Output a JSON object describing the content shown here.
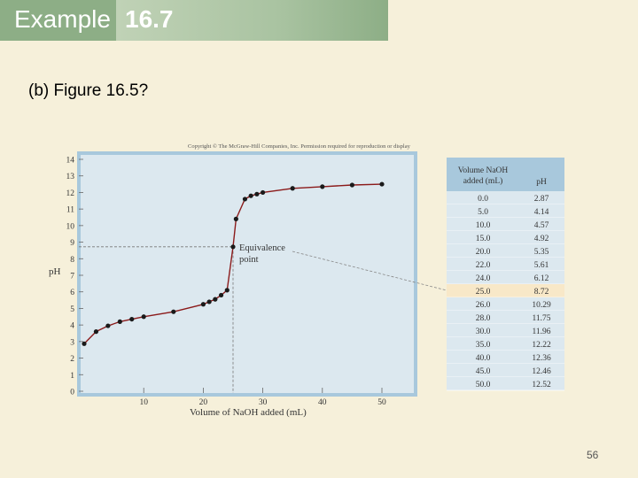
{
  "header": {
    "title_word": "Example",
    "title_number": "16.7"
  },
  "subtitle": "(b) Figure 16.5?",
  "page_number": "56",
  "copyright": "Copyright © The McGraw-Hill Companies, Inc. Permission required for reproduction or display",
  "annotation": {
    "line1": "Equivalence",
    "line2": "point"
  },
  "colors": {
    "title_bg": "#8dae86",
    "plot_bg": "#dce8ef",
    "plot_border": "#a8c8dc",
    "curve": "#8b1a1a",
    "table_header": "#a8c8dc",
    "table_highlight": "#f8e8c8"
  },
  "table": {
    "header_col1": [
      "Volume NaOH",
      "added (mL)"
    ],
    "header_col2": "pH",
    "rows": [
      [
        "0.0",
        "2.87"
      ],
      [
        "5.0",
        "4.14"
      ],
      [
        "10.0",
        "4.57"
      ],
      [
        "15.0",
        "4.92"
      ],
      [
        "20.0",
        "5.35"
      ],
      [
        "22.0",
        "5.61"
      ],
      [
        "24.0",
        "6.12"
      ],
      [
        "25.0",
        "8.72"
      ],
      [
        "26.0",
        "10.29"
      ],
      [
        "28.0",
        "11.75"
      ],
      [
        "30.0",
        "11.96"
      ],
      [
        "35.0",
        "12.22"
      ],
      [
        "40.0",
        "12.36"
      ],
      [
        "45.0",
        "12.46"
      ],
      [
        "50.0",
        "12.52"
      ]
    ],
    "highlight_row": 7
  },
  "chart_data": {
    "type": "line",
    "xlabel": "Volume of NaOH added (mL)",
    "ylabel": "pH",
    "xlim": [
      0,
      50
    ],
    "ylim": [
      0,
      14
    ],
    "x_ticks": [
      "10",
      "20",
      "30",
      "40",
      "50"
    ],
    "y_ticks": [
      "0",
      "1",
      "2",
      "3",
      "4",
      "5",
      "6",
      "7",
      "8",
      "9",
      "10",
      "11",
      "12",
      "13",
      "14"
    ],
    "equivalence_point": {
      "x": 25,
      "y": 8.72
    },
    "points": [
      {
        "x": 0,
        "y": 2.87
      },
      {
        "x": 2,
        "y": 3.6
      },
      {
        "x": 4,
        "y": 3.95
      },
      {
        "x": 6,
        "y": 4.2
      },
      {
        "x": 8,
        "y": 4.35
      },
      {
        "x": 10,
        "y": 4.5
      },
      {
        "x": 15,
        "y": 4.8
      },
      {
        "x": 20,
        "y": 5.25
      },
      {
        "x": 21,
        "y": 5.4
      },
      {
        "x": 22,
        "y": 5.55
      },
      {
        "x": 23,
        "y": 5.8
      },
      {
        "x": 24,
        "y": 6.1
      },
      {
        "x": 25,
        "y": 8.72
      },
      {
        "x": 25.5,
        "y": 10.4
      },
      {
        "x": 27,
        "y": 11.6
      },
      {
        "x": 28,
        "y": 11.8
      },
      {
        "x": 29,
        "y": 11.9
      },
      {
        "x": 30,
        "y": 12.0
      },
      {
        "x": 35,
        "y": 12.25
      },
      {
        "x": 40,
        "y": 12.35
      },
      {
        "x": 45,
        "y": 12.45
      },
      {
        "x": 50,
        "y": 12.5
      }
    ]
  }
}
